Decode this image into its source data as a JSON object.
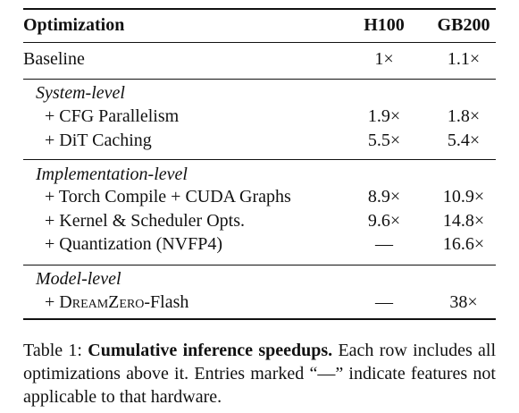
{
  "table": {
    "header": [
      "Optimization",
      "H100",
      "GB200"
    ],
    "baseline": [
      "Baseline",
      "1×",
      "1.1×"
    ],
    "sections": [
      {
        "title": "System-level",
        "rows": [
          [
            "+ CFG Parallelism",
            "1.9×",
            "1.8×"
          ],
          [
            "+ DiT Caching",
            "5.5×",
            "5.4×"
          ]
        ]
      },
      {
        "title": "Implementation-level",
        "rows": [
          [
            "+ Torch Compile + CUDA Graphs",
            "8.9×",
            "10.9×"
          ],
          [
            "+ Kernel & Scheduler Opts.",
            "9.6×",
            "14.8×"
          ],
          [
            "+ Quantization (NVFP4)",
            "—",
            "16.6×"
          ]
        ]
      },
      {
        "title": "Model-level",
        "rows": [
          [
            {
              "prefix": "+",
              "name": "DreamZero",
              "suffix": "-Flash"
            },
            "—",
            "38×"
          ]
        ]
      }
    ]
  },
  "caption": {
    "label": "Table 1:",
    "title": "Cumulative inference speedups.",
    "text": "Each row includes all optimizations above it. Entries marked “—” indicate features not applicable to that hardware."
  }
}
